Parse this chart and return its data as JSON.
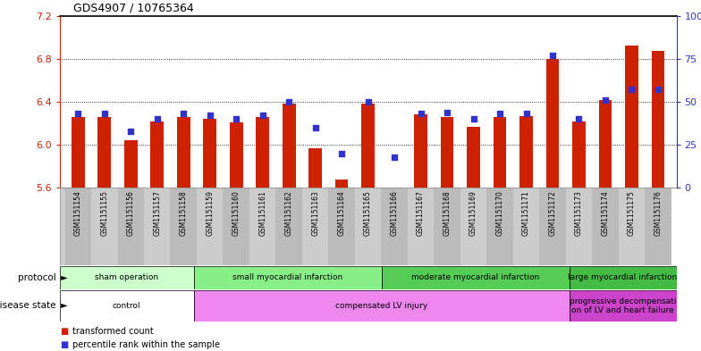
{
  "title": "GDS4907 / 10765364",
  "samples": [
    "GSM1151154",
    "GSM1151155",
    "GSM1151156",
    "GSM1151157",
    "GSM1151158",
    "GSM1151159",
    "GSM1151160",
    "GSM1151161",
    "GSM1151162",
    "GSM1151163",
    "GSM1151164",
    "GSM1151165",
    "GSM1151166",
    "GSM1151167",
    "GSM1151168",
    "GSM1151169",
    "GSM1151170",
    "GSM1151171",
    "GSM1151172",
    "GSM1151173",
    "GSM1151174",
    "GSM1151175",
    "GSM1151176"
  ],
  "bar_values": [
    6.26,
    6.26,
    6.04,
    6.22,
    6.26,
    6.24,
    6.21,
    6.26,
    6.38,
    5.97,
    5.68,
    6.38,
    5.57,
    6.28,
    6.26,
    6.17,
    6.26,
    6.27,
    6.8,
    6.22,
    6.42,
    6.92,
    6.87
  ],
  "dot_values": [
    43,
    43,
    33,
    40,
    43,
    42,
    40,
    42,
    50,
    35,
    20,
    50,
    18,
    43,
    44,
    40,
    43,
    43,
    77,
    40,
    51,
    57,
    57
  ],
  "ylim": [
    5.6,
    7.2
  ],
  "yticks": [
    5.6,
    6.0,
    6.4,
    6.8,
    7.2
  ],
  "right_yticks": [
    0,
    25,
    50,
    75,
    100
  ],
  "right_ytick_labels": [
    "0",
    "25",
    "50",
    "75",
    "100%"
  ],
  "bar_color": "#cc2200",
  "dot_color": "#3333cc",
  "protocol_groups": [
    {
      "label": "sham operation",
      "start": 0,
      "end": 5,
      "color": "#ccffcc"
    },
    {
      "label": "small myocardial infarction",
      "start": 5,
      "end": 12,
      "color": "#88ee88"
    },
    {
      "label": "moderate myocardial infarction",
      "start": 12,
      "end": 19,
      "color": "#55cc55"
    },
    {
      "label": "large myocardial infarction",
      "start": 19,
      "end": 23,
      "color": "#44bb44"
    }
  ],
  "disease_groups": [
    {
      "label": "control",
      "start": 0,
      "end": 5,
      "color": "#ffffff"
    },
    {
      "label": "compensated LV injury",
      "start": 5,
      "end": 19,
      "color": "#ee88ee"
    },
    {
      "label": "progressive decompensati\non of LV and heart failure",
      "start": 19,
      "end": 23,
      "color": "#cc44cc"
    }
  ]
}
